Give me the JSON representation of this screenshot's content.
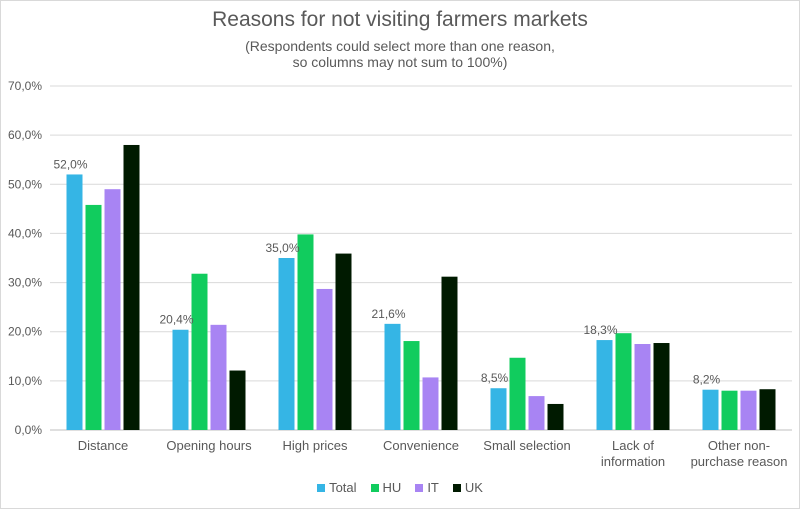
{
  "chart_data": {
    "type": "bar",
    "title": "Reasons for not visiting farmers markets",
    "subtitle_lines": [
      "(Respondents could select more than one reason,",
      "so columns may not sum to 100%)"
    ],
    "categories": [
      [
        "Distance"
      ],
      [
        "Opening hours"
      ],
      [
        "High prices"
      ],
      [
        "Convenience"
      ],
      [
        "Small selection"
      ],
      [
        "Lack of",
        "information"
      ],
      [
        "Other non-",
        "purchase reason"
      ]
    ],
    "series": [
      {
        "name": "Total",
        "color": "#35b5e5",
        "values": [
          52.0,
          20.4,
          35.0,
          21.6,
          8.5,
          18.3,
          8.2
        ]
      },
      {
        "name": "HU",
        "color": "#11cc5e",
        "values": [
          45.8,
          31.8,
          39.8,
          18.1,
          14.7,
          19.7,
          8.0
        ]
      },
      {
        "name": "IT",
        "color": "#a884f3",
        "values": [
          49.0,
          21.4,
          28.7,
          10.7,
          6.9,
          17.5,
          8.0
        ]
      },
      {
        "name": "UK",
        "color": "#001a00",
        "values": [
          58.0,
          12.1,
          35.9,
          31.2,
          5.3,
          17.7,
          8.3
        ]
      }
    ],
    "data_labels": [
      "52,0%",
      "20,4%",
      "35,0%",
      "21,6%",
      "8,5%",
      "18,3%",
      "8,2%"
    ],
    "ylim": [
      0,
      70
    ],
    "yticks": [
      "0,0%",
      "10,0%",
      "20,0%",
      "30,0%",
      "40,0%",
      "50,0%",
      "60,0%",
      "70,0%"
    ],
    "grid": true,
    "legend_position": "bottom"
  }
}
